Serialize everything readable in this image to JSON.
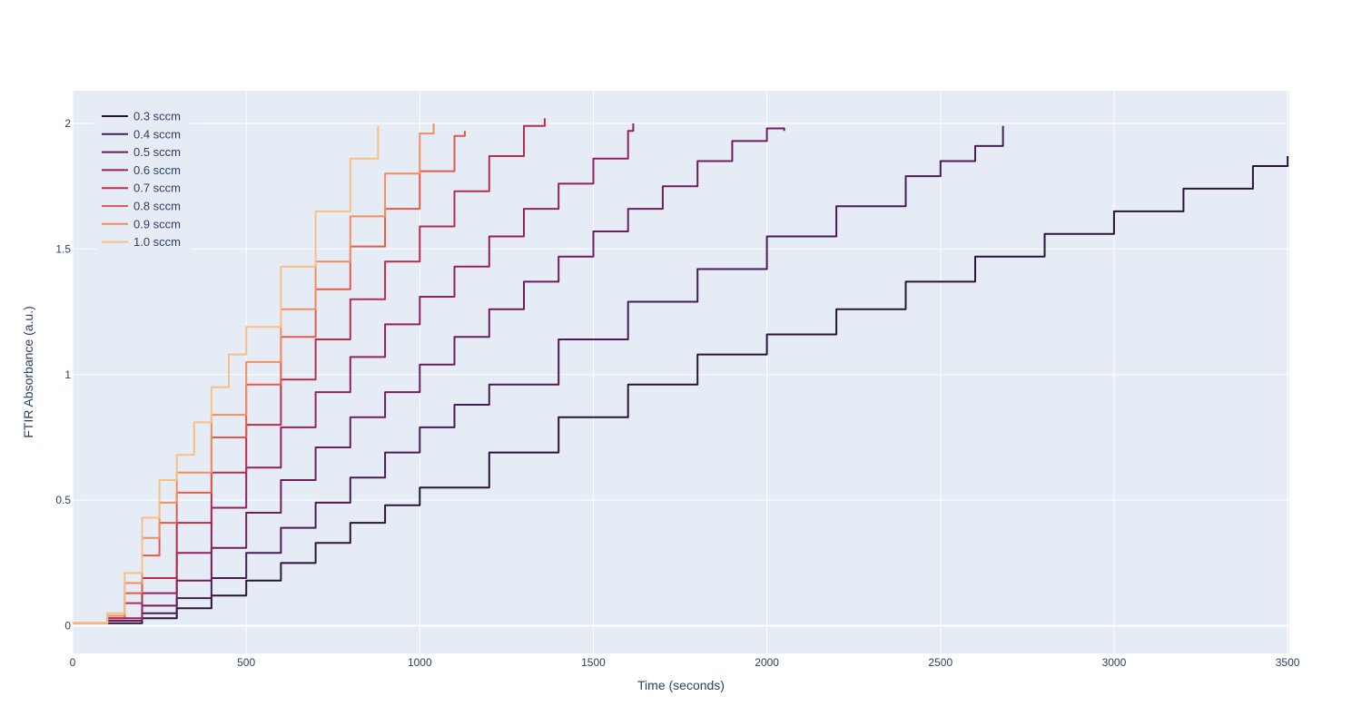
{
  "chart_data": {
    "type": "line",
    "title": "",
    "xlabel": "Time (seconds)",
    "ylabel": "FTIR Absorbance (a.u.)",
    "xlim": [
      0,
      3505
    ],
    "ylim": [
      -0.11,
      2.13
    ],
    "x_ticks": [
      0,
      500,
      1000,
      1500,
      2000,
      2500,
      3000,
      3500
    ],
    "x_tick_labels": [
      "0",
      "500",
      "1000",
      "1500",
      "2000",
      "2500",
      "3000",
      "3500"
    ],
    "y_ticks": [
      0,
      0.5,
      1,
      1.5,
      2
    ],
    "y_tick_labels": [
      "0",
      "0.5",
      "1",
      "1.5",
      "2"
    ],
    "grid": true,
    "legend_position": "top-left",
    "series": [
      {
        "name": "0.3 sccm",
        "color": "#2b1437",
        "x": [
          0,
          100,
          200,
          300,
          400,
          500,
          600,
          700,
          800,
          900,
          1000,
          1200,
          1400,
          1600,
          1800,
          2000,
          2200,
          2400,
          2600,
          2800,
          3000,
          3200,
          3400,
          3500
        ],
        "y": [
          0.01,
          0.01,
          0.03,
          0.07,
          0.12,
          0.18,
          0.25,
          0.33,
          0.41,
          0.48,
          0.55,
          0.69,
          0.83,
          0.96,
          1.08,
          1.16,
          1.26,
          1.37,
          1.47,
          1.56,
          1.65,
          1.74,
          1.83,
          1.87
        ]
      },
      {
        "name": "0.4 sccm",
        "color": "#4c1a55",
        "x": [
          0,
          100,
          200,
          300,
          400,
          500,
          600,
          700,
          800,
          900,
          1000,
          1100,
          1200,
          1400,
          1600,
          1800,
          2000,
          2200,
          2400,
          2500,
          2600,
          2680
        ],
        "y": [
          0.01,
          0.02,
          0.05,
          0.11,
          0.19,
          0.29,
          0.39,
          0.49,
          0.59,
          0.69,
          0.79,
          0.88,
          0.96,
          1.14,
          1.29,
          1.42,
          1.55,
          1.67,
          1.79,
          1.85,
          1.91,
          1.99
        ]
      },
      {
        "name": "0.5 sccm",
        "color": "#6e1d5f",
        "x": [
          0,
          100,
          200,
          300,
          400,
          500,
          600,
          700,
          800,
          900,
          1000,
          1100,
          1200,
          1300,
          1400,
          1500,
          1600,
          1700,
          1800,
          1900,
          2000,
          2050
        ],
        "y": [
          0.01,
          0.02,
          0.08,
          0.18,
          0.31,
          0.45,
          0.58,
          0.71,
          0.83,
          0.93,
          1.04,
          1.15,
          1.26,
          1.37,
          1.47,
          1.57,
          1.66,
          1.75,
          1.85,
          1.93,
          1.98,
          1.97
        ]
      },
      {
        "name": "0.6 sccm",
        "color": "#93205f",
        "x": [
          0,
          100,
          200,
          300,
          400,
          500,
          600,
          700,
          800,
          900,
          1000,
          1100,
          1200,
          1300,
          1400,
          1500,
          1600,
          1615
        ],
        "y": [
          0.01,
          0.03,
          0.13,
          0.29,
          0.47,
          0.63,
          0.79,
          0.93,
          1.07,
          1.2,
          1.31,
          1.43,
          1.55,
          1.66,
          1.76,
          1.86,
          1.97,
          2.0
        ]
      },
      {
        "name": "0.7 sccm",
        "color": "#b82c4c",
        "x": [
          0,
          100,
          150,
          200,
          300,
          400,
          500,
          600,
          700,
          800,
          900,
          1000,
          1100,
          1200,
          1300,
          1360
        ],
        "y": [
          0.01,
          0.03,
          0.09,
          0.19,
          0.41,
          0.61,
          0.8,
          0.98,
          1.14,
          1.3,
          1.45,
          1.59,
          1.73,
          1.87,
          1.99,
          2.02
        ]
      },
      {
        "name": "0.8 sccm",
        "color": "#e45a49",
        "x": [
          0,
          100,
          150,
          200,
          250,
          300,
          400,
          500,
          600,
          700,
          800,
          900,
          1000,
          1100,
          1130
        ],
        "y": [
          0.01,
          0.04,
          0.13,
          0.28,
          0.41,
          0.53,
          0.75,
          0.96,
          1.15,
          1.34,
          1.51,
          1.66,
          1.81,
          1.95,
          1.97
        ]
      },
      {
        "name": "0.9 sccm",
        "color": "#f28e5f",
        "x": [
          0,
          100,
          150,
          200,
          250,
          300,
          400,
          500,
          600,
          700,
          800,
          900,
          1000,
          1040
        ],
        "y": [
          0.01,
          0.04,
          0.17,
          0.35,
          0.49,
          0.61,
          0.84,
          1.05,
          1.26,
          1.45,
          1.63,
          1.8,
          1.96,
          2.0
        ]
      },
      {
        "name": "1.0 sccm",
        "color": "#f8bf86",
        "x": [
          0,
          100,
          150,
          200,
          250,
          300,
          350,
          400,
          450,
          500,
          600,
          700,
          800,
          880
        ],
        "y": [
          0.01,
          0.05,
          0.21,
          0.43,
          0.58,
          0.68,
          0.81,
          0.95,
          1.08,
          1.19,
          1.43,
          1.65,
          1.86,
          1.99
        ]
      }
    ]
  }
}
